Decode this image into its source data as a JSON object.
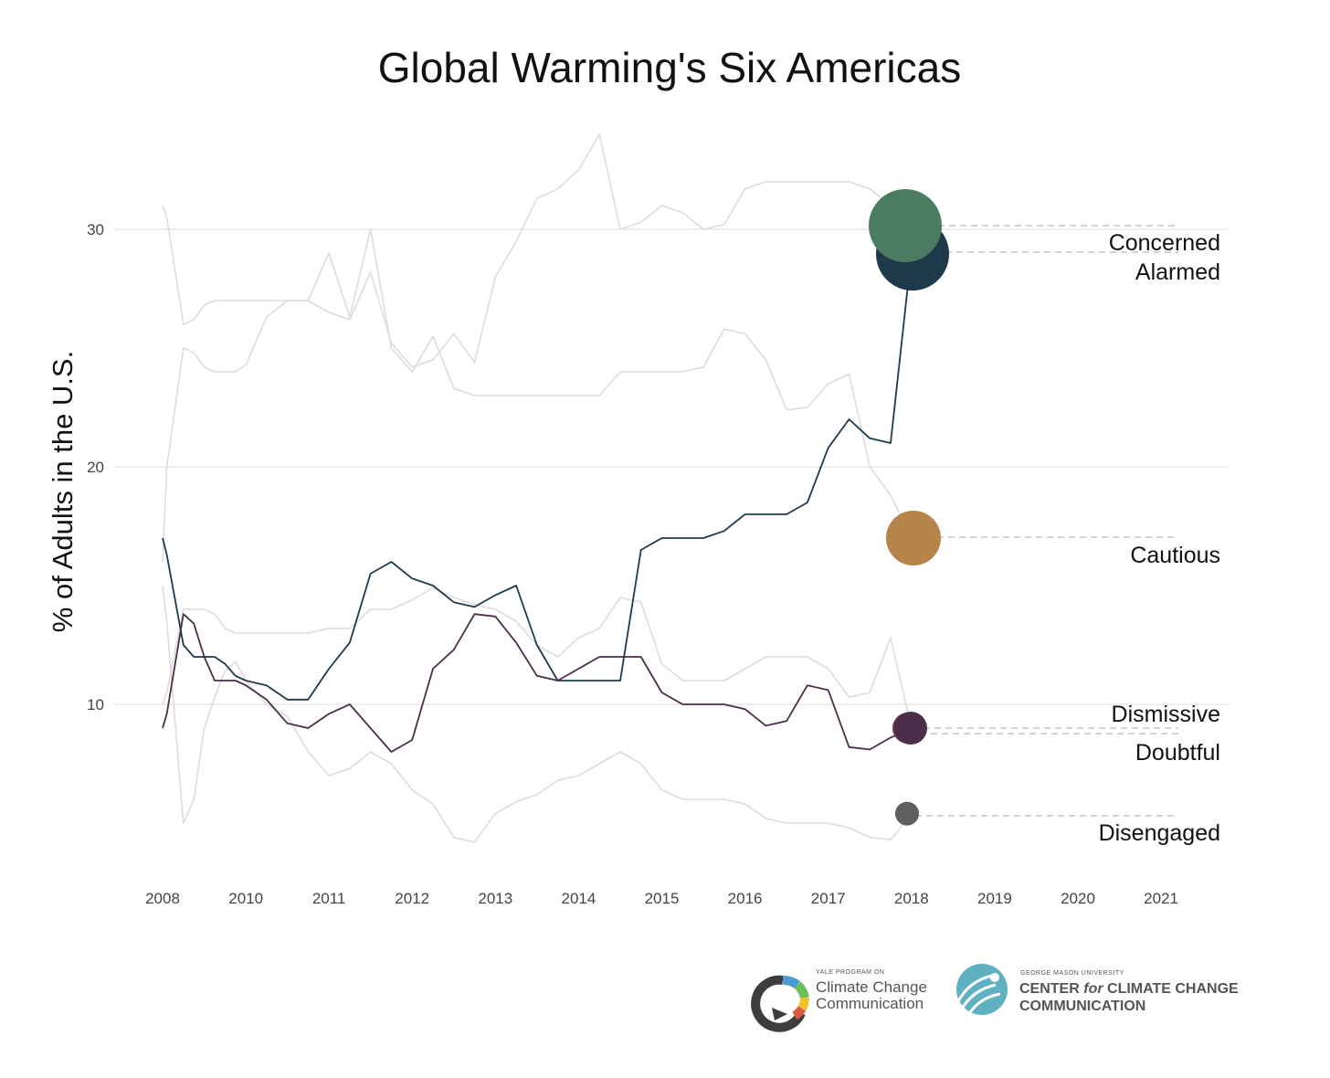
{
  "chart_data": {
    "type": "line",
    "title": "Global Warming's Six Americas",
    "xlabel": "",
    "ylabel": "% of Adults in the U.S.",
    "x_ticks": [
      "2008",
      "2010",
      "2011",
      "2012",
      "2013",
      "2014",
      "2015",
      "2016",
      "2017",
      "2018",
      "2019",
      "2020",
      "2021"
    ],
    "y_ticks": [
      "10",
      "20",
      "30"
    ],
    "xlim": [
      2008.0,
      2021.7
    ],
    "ylim": [
      4,
      34
    ],
    "grid": "horizontal",
    "legend": "direct labels at right",
    "x": [
      2008.0,
      2008.1,
      2008.5,
      2008.75,
      2009.0,
      2009.25,
      2009.5,
      2009.75,
      2010.0,
      2010.25,
      2010.5,
      2010.75,
      2011.0,
      2011.25,
      2011.5,
      2011.75,
      2012.0,
      2012.25,
      2012.5,
      2012.75,
      2013.0,
      2013.25,
      2013.5,
      2013.75,
      2014.0,
      2014.25,
      2014.5,
      2014.75,
      2015.0,
      2015.25,
      2015.5,
      2015.75,
      2016.0,
      2016.25,
      2016.5,
      2016.75,
      2017.0,
      2017.25,
      2017.5,
      2017.75,
      2018.0
    ],
    "series": [
      {
        "name": "Alarmed",
        "color": "#1e3a4a",
        "emphasis": true,
        "marker_size": "large",
        "values": [
          17,
          16.3,
          12.5,
          12,
          12,
          12,
          11.7,
          11.2,
          11,
          10.8,
          10.2,
          10.2,
          11.5,
          12.6,
          15.5,
          16,
          15.3,
          15,
          14.3,
          14.1,
          14.6,
          15,
          12.5,
          11,
          11,
          11,
          11,
          16.5,
          17,
          17,
          17,
          17.3,
          18,
          18,
          18,
          18.5,
          20.8,
          22,
          21.2,
          21,
          29
        ]
      },
      {
        "name": "Dismissive",
        "color": "#4a2e4a",
        "emphasis": true,
        "marker_size": "medium",
        "values": [
          9,
          9.6,
          13.8,
          13.4,
          12,
          11,
          11,
          11,
          10.8,
          10.2,
          9.2,
          9,
          9.6,
          10,
          9,
          8,
          8.5,
          11.5,
          12.3,
          13.8,
          13.7,
          12.6,
          11.2,
          11,
          11.5,
          12,
          12,
          12,
          10.5,
          10,
          10,
          10,
          9.8,
          9.1,
          9.3,
          10.8,
          10.6,
          8.2,
          8.1,
          8.6,
          9
        ]
      },
      {
        "name": "Concerned",
        "color": "#4a7c62",
        "emphasis": false,
        "marker_size": "large",
        "values": [
          31,
          30.5,
          26,
          26.2,
          26.8,
          27,
          27,
          27,
          27,
          27,
          27,
          27,
          26.5,
          26.2,
          28.2,
          25.2,
          24.2,
          24.5,
          25.6,
          24.4,
          28,
          29.5,
          31.3,
          31.7,
          32.5,
          34,
          30,
          30.3,
          31,
          30.7,
          30,
          30.2,
          31.7,
          32,
          32,
          32,
          32,
          32,
          31.7,
          31,
          30
        ]
      },
      {
        "name": "Cautious",
        "color": "#b5854a",
        "emphasis": false,
        "marker_size": "medium",
        "values": [
          16,
          20,
          25,
          24.8,
          24.2,
          24,
          24,
          24,
          24.3,
          26.3,
          27,
          27,
          29,
          26.3,
          30,
          25,
          24,
          25.5,
          23.3,
          23,
          23,
          23,
          23,
          23,
          23,
          23,
          24,
          24,
          24,
          24,
          24.2,
          25.8,
          25.6,
          24.5,
          22.4,
          22.5,
          23.5,
          23.9,
          20,
          18.8,
          17
        ]
      },
      {
        "name": "Doubtful",
        "color": "#7a2e3e",
        "emphasis": false,
        "marker_size": "medium",
        "values": [
          10,
          10.5,
          14,
          14,
          14,
          13.8,
          13.2,
          13,
          13,
          13,
          13,
          13,
          13.2,
          13.2,
          14,
          14,
          14.4,
          14.9,
          14.5,
          14.2,
          14,
          13.5,
          12.5,
          12,
          12.8,
          13.2,
          14.5,
          14.3,
          11.7,
          11,
          11,
          11,
          11.5,
          12,
          12,
          12,
          11.5,
          10.3,
          10.5,
          12.8,
          9
        ]
      },
      {
        "name": "Disengaged",
        "color": "#5e5e5e",
        "emphasis": false,
        "marker_size": "small",
        "values": [
          15,
          13.5,
          5,
          6,
          9,
          10.3,
          11.4,
          11.8,
          11,
          10,
          9.5,
          8,
          7,
          7.3,
          8,
          7.5,
          6.4,
          5.8,
          4.4,
          4.2,
          5.4,
          5.9,
          6.2,
          6.8,
          7,
          7.5,
          8,
          7.5,
          6.4,
          6,
          6,
          6,
          5.8,
          5.2,
          5,
          5,
          5,
          4.8,
          4.4,
          4.3,
          5.4
        ]
      }
    ],
    "labels": [
      {
        "series": "Concerned",
        "text": "Concerned"
      },
      {
        "series": "Alarmed",
        "text": "Alarmed"
      },
      {
        "series": "Cautious",
        "text": "Cautious"
      },
      {
        "series": "Dismissive",
        "text": "Dismissive"
      },
      {
        "series": "Doubtful",
        "text": "Doubtful"
      },
      {
        "series": "Disengaged",
        "text": "Disengaged"
      }
    ]
  },
  "logos": {
    "yale": {
      "small": "YALE PROGRAM ON",
      "line1": "Climate Change",
      "line2": "Communication",
      "colors": [
        "#3d3d3d",
        "#4a9bd1",
        "#6bbf59",
        "#f2c12e",
        "#d95b43",
        "#8e44ad"
      ]
    },
    "gmu": {
      "small": "GEORGE MASON UNIVERSITY",
      "line1_a": "CENTER ",
      "line1_for": "for",
      "line1_b": " CLIMATE CHANGE",
      "line2": "COMMUNICATION",
      "color": "#5fb1c2"
    }
  }
}
